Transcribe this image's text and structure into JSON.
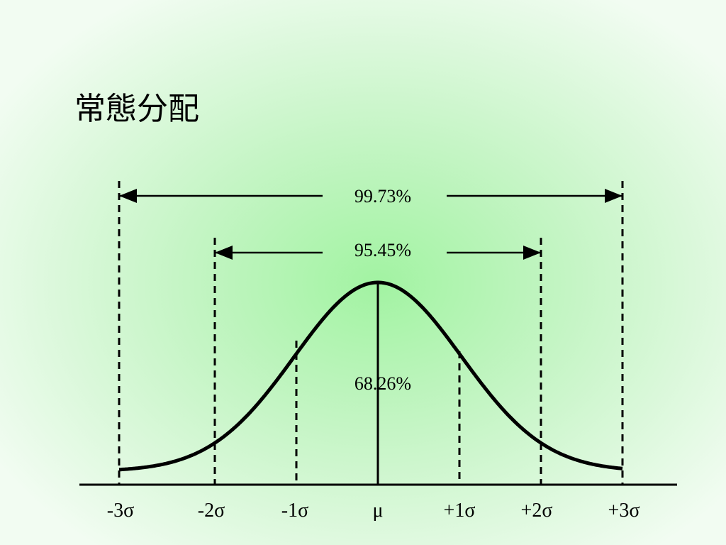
{
  "title": "常態分配",
  "ranges": [
    {
      "label": "99.73%"
    },
    {
      "label": "95.45%"
    },
    {
      "label": "68.26%"
    }
  ],
  "axis_labels": [
    "-3σ",
    "-2σ",
    "-1σ",
    "μ",
    "+1σ",
    "+2σ",
    "+3σ"
  ]
}
